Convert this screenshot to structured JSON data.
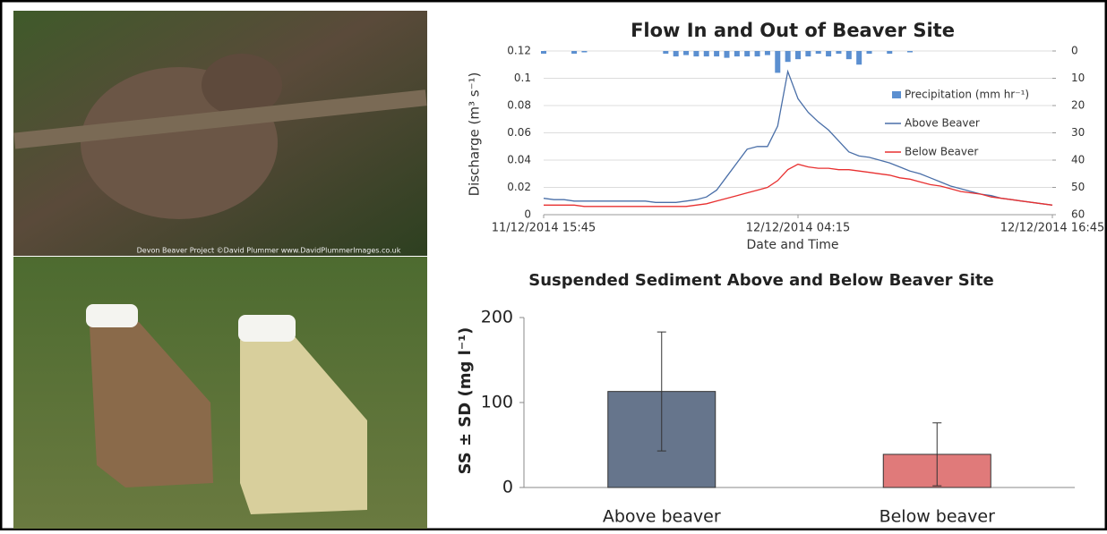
{
  "photos": {
    "caption": "Devon Beaver Project ©David Plummer  www.DavidPlummerImages.co.uk"
  },
  "chart_data": [
    {
      "type": "line",
      "title": "Flow In and Out of Beaver Site",
      "x_label": "Date and Time",
      "y_label": "Discharge  (m³ s⁻¹)",
      "x": [
        0,
        0.5,
        1,
        1.5,
        2,
        2.5,
        3,
        3.5,
        4,
        4.5,
        5,
        5.5,
        6,
        6.5,
        7,
        7.5,
        8,
        8.5,
        9,
        9.5,
        10,
        10.5,
        11,
        11.5,
        12,
        12.5,
        13,
        13.5,
        14,
        14.5,
        15,
        15.5,
        16,
        16.5,
        17,
        17.5,
        18,
        18.5,
        19,
        19.5,
        20,
        20.5,
        21,
        21.5,
        22,
        22.5,
        23,
        23.5,
        24,
        24.5,
        25
      ],
      "xlim": [
        0,
        25
      ],
      "xticks": [
        {
          "value": 0,
          "label": "11/12/2014 15:45"
        },
        {
          "value": 12.5,
          "label": "12/12/2014 04:15"
        },
        {
          "value": 25,
          "label": "12/12/2014 16:45"
        }
      ],
      "ylim": [
        0,
        0.12
      ],
      "yticks": [
        0,
        0.02,
        0.04,
        0.06,
        0.08,
        0.1,
        0.12
      ],
      "y2lim": [
        0,
        60
      ],
      "y2ticks": [
        0,
        10,
        20,
        30,
        40,
        50,
        60
      ],
      "y2_inverted": true,
      "grid": true,
      "series": [
        {
          "name": "Precipitation (mm hr⁻¹)",
          "color": "#5b8fd0",
          "type": "bar",
          "axis": "y2",
          "values": [
            1,
            0,
            0,
            1,
            0.5,
            0,
            0,
            0,
            0,
            0,
            0,
            0,
            1,
            2,
            1.5,
            2,
            2,
            2,
            2.5,
            2,
            2,
            2,
            1.5,
            8,
            4,
            3,
            2,
            1,
            2,
            1,
            3,
            5,
            1,
            0,
            1,
            0,
            0.5,
            0,
            0,
            0,
            0,
            0,
            0,
            0,
            0,
            0,
            0,
            0,
            0,
            0,
            0
          ]
        },
        {
          "name": "Above Beaver",
          "color": "#4a6fa8",
          "type": "line",
          "values": [
            0.012,
            0.011,
            0.011,
            0.01,
            0.01,
            0.01,
            0.01,
            0.01,
            0.01,
            0.01,
            0.01,
            0.009,
            0.009,
            0.009,
            0.01,
            0.011,
            0.013,
            0.018,
            0.028,
            0.038,
            0.048,
            0.05,
            0.05,
            0.065,
            0.105,
            0.085,
            0.075,
            0.068,
            0.062,
            0.054,
            0.046,
            0.043,
            0.042,
            0.04,
            0.038,
            0.035,
            0.032,
            0.03,
            0.027,
            0.024,
            0.021,
            0.019,
            0.017,
            0.015,
            0.014,
            0.012,
            0.011,
            0.01,
            0.009,
            0.008,
            0.007
          ]
        },
        {
          "name": "Below Beaver",
          "color": "#e83030",
          "type": "line",
          "values": [
            0.007,
            0.007,
            0.007,
            0.007,
            0.006,
            0.006,
            0.006,
            0.006,
            0.006,
            0.006,
            0.006,
            0.006,
            0.006,
            0.006,
            0.006,
            0.007,
            0.008,
            0.01,
            0.012,
            0.014,
            0.016,
            0.018,
            0.02,
            0.025,
            0.033,
            0.037,
            0.035,
            0.034,
            0.034,
            0.033,
            0.033,
            0.032,
            0.031,
            0.03,
            0.029,
            0.027,
            0.026,
            0.024,
            0.022,
            0.021,
            0.019,
            0.017,
            0.016,
            0.015,
            0.013,
            0.012,
            0.011,
            0.01,
            0.009,
            0.008,
            0.007
          ]
        }
      ]
    },
    {
      "type": "bar",
      "title": "Suspended Sediment Above and Below Beaver Site",
      "y_label": "SS ± SD (mg l⁻¹)",
      "categories": [
        "Above beaver",
        "Below beaver"
      ],
      "values": [
        113,
        39
      ],
      "errors": [
        70,
        37
      ],
      "colors": [
        "#66758c",
        "#e07a7a"
      ],
      "ylim": [
        0,
        200
      ],
      "yticks": [
        0,
        100,
        200
      ]
    }
  ]
}
